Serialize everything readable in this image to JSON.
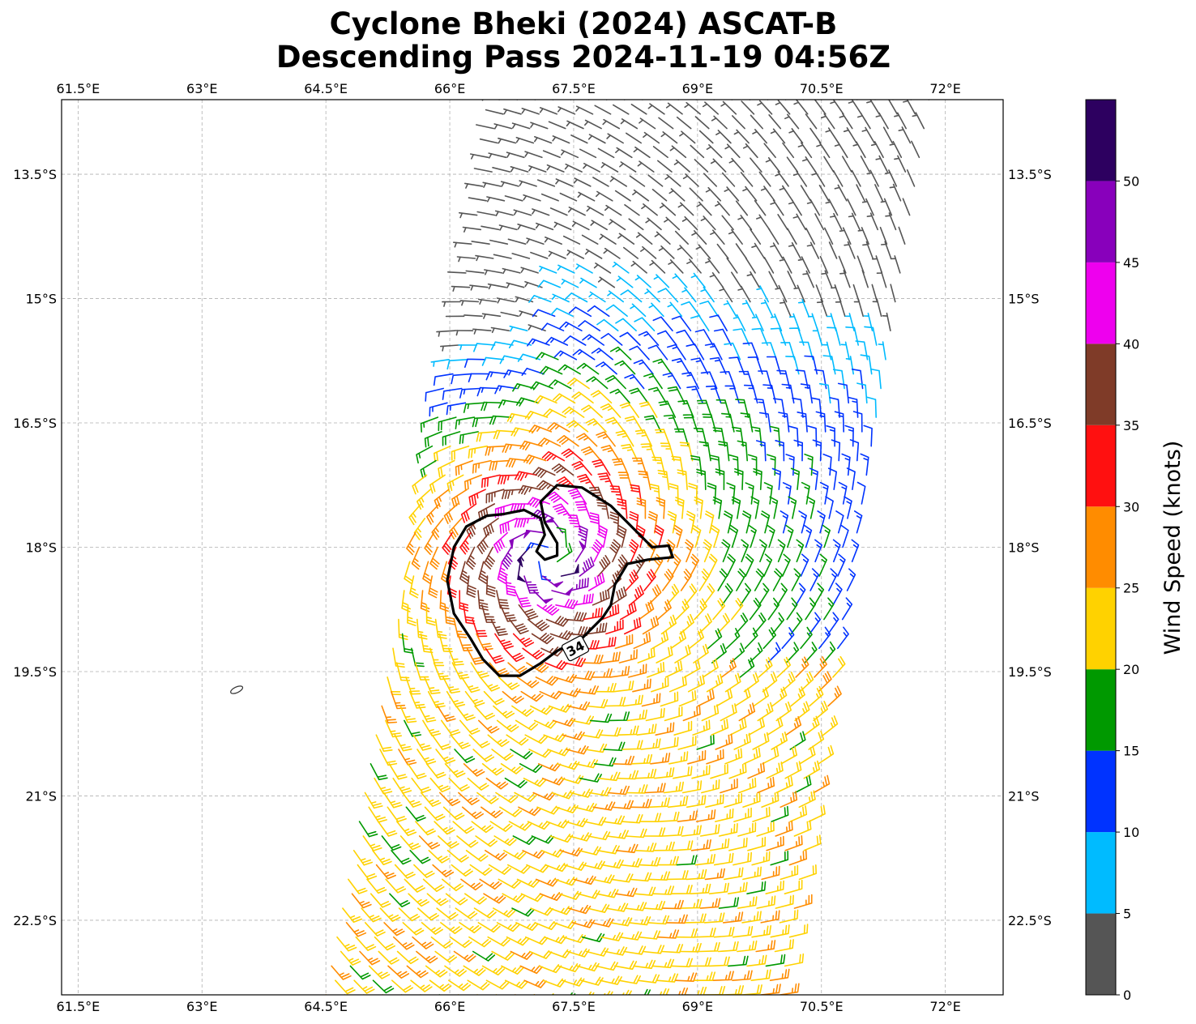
{
  "title": {
    "line1": "Cyclone Bheki (2024) ASCAT-B",
    "line2": "Descending Pass 2024-11-19 04:56Z"
  },
  "colorbar": {
    "label": "Wind Speed (knots)",
    "ticks": [
      "0",
      "5",
      "10",
      "15",
      "20",
      "25",
      "30",
      "35",
      "40",
      "45",
      "50"
    ],
    "bounds": [
      0,
      5,
      10,
      15,
      20,
      25,
      30,
      35,
      40,
      45,
      50,
      55
    ],
    "colors": [
      "#555555",
      "#00bbff",
      "#0033ff",
      "#009900",
      "#ffd200",
      "#ff8c00",
      "#ff1010",
      "#7f3b28",
      "#ee00ee",
      "#8800bb",
      "#2d0060"
    ]
  },
  "chart_data": {
    "type": "wind-barb-map",
    "xlim": [
      61.3,
      72.7
    ],
    "ylim": [
      -23.4,
      -12.6
    ],
    "x_ticks": [
      {
        "value": 61.5,
        "label": "61.5°E"
      },
      {
        "value": 63.0,
        "label": "63°E"
      },
      {
        "value": 64.5,
        "label": "64.5°E"
      },
      {
        "value": 66.0,
        "label": "66°E"
      },
      {
        "value": 67.5,
        "label": "67.5°E"
      },
      {
        "value": 69.0,
        "label": "69°E"
      },
      {
        "value": 70.5,
        "label": "70.5°E"
      },
      {
        "value": 72.0,
        "label": "72°E"
      }
    ],
    "y_ticks": [
      {
        "value": -13.5,
        "label": "13.5°S"
      },
      {
        "value": -15.0,
        "label": "15°S"
      },
      {
        "value": -16.5,
        "label": "16.5°S"
      },
      {
        "value": -18.0,
        "label": "18°S"
      },
      {
        "value": -19.5,
        "label": "19.5°S"
      },
      {
        "value": -21.0,
        "label": "21°S"
      },
      {
        "value": -22.5,
        "label": "22.5°S"
      }
    ],
    "grid": true,
    "storm_center": {
      "lon": 67.2,
      "lat": -18.1
    },
    "swath": {
      "corners": [
        [
          66.6,
          -12.6
        ],
        [
          71.8,
          -12.6
        ],
        [
          70.0,
          -23.4
        ],
        [
          64.5,
          -23.4
        ]
      ]
    },
    "contour": {
      "level_label": "34",
      "points": [
        [
          66.65,
          -17.6
        ],
        [
          66.9,
          -17.55
        ],
        [
          67.1,
          -17.65
        ],
        [
          67.15,
          -17.85
        ],
        [
          67.05,
          -18.05
        ],
        [
          67.15,
          -18.15
        ],
        [
          67.3,
          -18.1
        ],
        [
          67.3,
          -17.95
        ],
        [
          67.15,
          -17.7
        ],
        [
          67.1,
          -17.45
        ],
        [
          67.3,
          -17.25
        ],
        [
          67.6,
          -17.28
        ],
        [
          67.95,
          -17.5
        ],
        [
          68.25,
          -17.8
        ],
        [
          68.45,
          -18.0
        ],
        [
          68.65,
          -17.98
        ],
        [
          68.7,
          -18.12
        ],
        [
          68.4,
          -18.15
        ],
        [
          68.15,
          -18.2
        ],
        [
          68.0,
          -18.45
        ],
        [
          67.95,
          -18.7
        ],
        [
          67.85,
          -18.85
        ],
        [
          67.6,
          -19.1
        ],
        [
          67.3,
          -19.25
        ],
        [
          67.1,
          -19.4
        ],
        [
          66.85,
          -19.55
        ],
        [
          66.6,
          -19.55
        ],
        [
          66.4,
          -19.35
        ],
        [
          66.25,
          -19.1
        ],
        [
          66.05,
          -18.8
        ],
        [
          65.97,
          -18.4
        ],
        [
          66.05,
          -18.0
        ],
        [
          66.2,
          -17.75
        ],
        [
          66.45,
          -17.62
        ],
        [
          66.65,
          -17.6
        ]
      ]
    },
    "island": {
      "lon": 63.42,
      "lat": -19.72
    }
  }
}
